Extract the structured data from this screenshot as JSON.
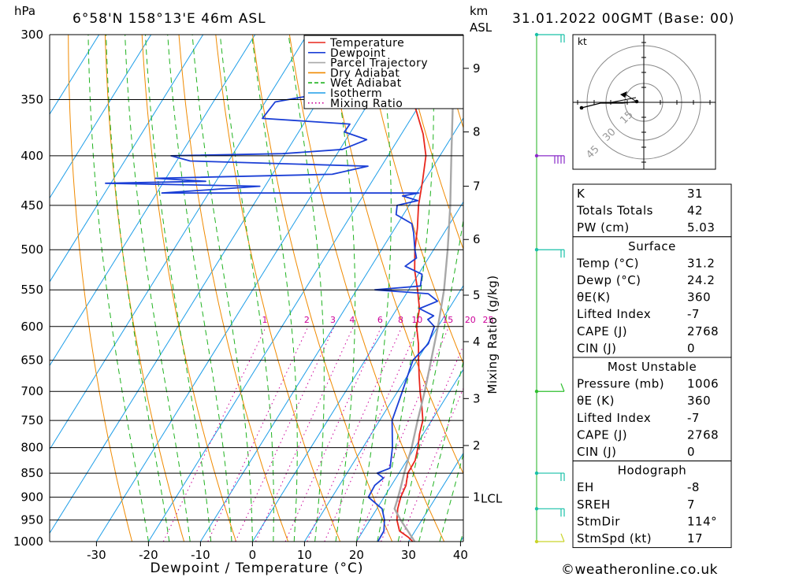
{
  "header": {
    "location": "6°58'N  158°13'E  46m  ASL",
    "datetime": "31.01.2022  00GMT  (Base: 00)",
    "hpa_unit": "hPa",
    "km_unit": "km",
    "asl_unit": "ASL"
  },
  "chart_data": {
    "type": "skew-t log-p sounding",
    "xlabel": "Dewpoint / Temperature (°C)",
    "ylabel": "hPa",
    "right_axis_label": "Mixing Ratio (g/kg)",
    "x_ticks": [
      -30,
      -20,
      -10,
      0,
      10,
      20,
      30,
      40
    ],
    "pressure_levels": [
      300,
      350,
      400,
      450,
      500,
      550,
      600,
      650,
      700,
      750,
      800,
      850,
      900,
      950,
      1000
    ],
    "km_ticks": [
      {
        "label": "9",
        "p": 325
      },
      {
        "label": "8",
        "p": 378
      },
      {
        "label": "7",
        "p": 430
      },
      {
        "label": "6",
        "p": 488
      },
      {
        "label": "5",
        "p": 557
      },
      {
        "label": "4",
        "p": 622
      },
      {
        "label": "3",
        "p": 712
      },
      {
        "label": "2",
        "p": 796
      },
      {
        "label": "1",
        "p": 900
      }
    ],
    "lcl": {
      "label": "LCL",
      "p": 903
    },
    "mixing_ratio_labels": [
      "1",
      "2",
      "3",
      "4",
      "6",
      "8",
      "10",
      "15",
      "20",
      "25"
    ],
    "mixing_ratio_values": [
      1,
      2,
      3,
      4,
      6,
      8,
      10,
      15,
      20,
      25
    ],
    "legend": [
      {
        "name": "Temperature",
        "color": "#e8261c",
        "style": "solid"
      },
      {
        "name": "Dewpoint",
        "color": "#1b3fd6",
        "style": "solid"
      },
      {
        "name": "Parcel Trajectory",
        "color": "#a8a8a8",
        "style": "solid"
      },
      {
        "name": "Dry Adiabat",
        "color": "#f08a00",
        "style": "solid"
      },
      {
        "name": "Wet Adiabat",
        "color": "#1fb21f",
        "style": "dashed"
      },
      {
        "name": "Isotherm",
        "color": "#1e9ee8",
        "style": "solid"
      },
      {
        "name": "Mixing Ratio",
        "color": "#cc0099",
        "style": "dotted"
      }
    ],
    "series": [
      {
        "name": "Temperature",
        "points": [
          {
            "p": 1000,
            "t": 30.8
          },
          {
            "p": 990,
            "t": 29.5
          },
          {
            "p": 975,
            "t": 27.0
          },
          {
            "p": 950,
            "t": 25.2
          },
          {
            "p": 925,
            "t": 24.0
          },
          {
            "p": 900,
            "t": 23.2
          },
          {
            "p": 875,
            "t": 22.8
          },
          {
            "p": 850,
            "t": 21.7
          },
          {
            "p": 825,
            "t": 21.6
          },
          {
            "p": 800,
            "t": 20.6
          },
          {
            "p": 775,
            "t": 19.3
          },
          {
            "p": 750,
            "t": 18.3
          },
          {
            "p": 725,
            "t": 16.4
          },
          {
            "p": 700,
            "t": 14.3
          },
          {
            "p": 675,
            "t": 12.3
          },
          {
            "p": 650,
            "t": 10.3
          },
          {
            "p": 625,
            "t": 8.3
          },
          {
            "p": 600,
            "t": 5.9
          },
          {
            "p": 575,
            "t": 4.3
          },
          {
            "p": 550,
            "t": 1.7
          },
          {
            "p": 525,
            "t": -1.2
          },
          {
            "p": 500,
            "t": -3.6
          },
          {
            "p": 475,
            "t": -5.7
          },
          {
            "p": 450,
            "t": -8.2
          },
          {
            "p": 425,
            "t": -10.3
          },
          {
            "p": 400,
            "t": -12.7
          },
          {
            "p": 380,
            "t": -15.8
          },
          {
            "p": 360,
            "t": -19.8
          },
          {
            "p": 340,
            "t": -24.3
          },
          {
            "p": 320,
            "t": -28.8
          },
          {
            "p": 305,
            "t": -32.3
          },
          {
            "p": 300,
            "t": -33.5
          }
        ]
      },
      {
        "name": "Dewpoint",
        "points": [
          {
            "p": 1000,
            "t": 24.1
          },
          {
            "p": 975,
            "t": 24.0
          },
          {
            "p": 950,
            "t": 22.8
          },
          {
            "p": 925,
            "t": 21.0
          },
          {
            "p": 900,
            "t": 17.0
          },
          {
            "p": 875,
            "t": 16.8
          },
          {
            "p": 860,
            "t": 17.6
          },
          {
            "p": 850,
            "t": 15.8
          },
          {
            "p": 840,
            "t": 17.7
          },
          {
            "p": 800,
            "t": 15.7
          },
          {
            "p": 750,
            "t": 12.4
          },
          {
            "p": 700,
            "t": 10.9
          },
          {
            "p": 650,
            "t": 9.2
          },
          {
            "p": 625,
            "t": 10.2
          },
          {
            "p": 600,
            "t": 9.3
          },
          {
            "p": 590,
            "t": 7.2
          },
          {
            "p": 585,
            "t": 7.9
          },
          {
            "p": 575,
            "t": 4.3
          },
          {
            "p": 565,
            "t": 6.9
          },
          {
            "p": 555,
            "t": 4.2
          },
          {
            "p": 550,
            "t": -6.5
          },
          {
            "p": 545,
            "t": 1.8
          },
          {
            "p": 530,
            "t": 0.7
          },
          {
            "p": 520,
            "t": -3.5
          },
          {
            "p": 510,
            "t": -2.3
          },
          {
            "p": 500,
            "t": -3.6
          },
          {
            "p": 480,
            "t": -5.9
          },
          {
            "p": 470,
            "t": -7.3
          },
          {
            "p": 460,
            "t": -11.4
          },
          {
            "p": 450,
            "t": -12.3
          },
          {
            "p": 445,
            "t": -8.9
          },
          {
            "p": 440,
            "t": -12.4
          },
          {
            "p": 437,
            "t": -9.6
          },
          {
            "p": 437,
            "t": -59.0
          },
          {
            "p": 430,
            "t": -41.0
          },
          {
            "p": 427,
            "t": -71.0
          },
          {
            "p": 425,
            "t": -52.0
          },
          {
            "p": 422,
            "t": -62.0
          },
          {
            "p": 418,
            "t": -28.5
          },
          {
            "p": 410,
            "t": -22.6
          },
          {
            "p": 405,
            "t": -57.4
          },
          {
            "p": 400,
            "t": -61.7
          },
          {
            "p": 398,
            "t": -40.5
          },
          {
            "p": 394,
            "t": -29.5
          },
          {
            "p": 385,
            "t": -26.0
          },
          {
            "p": 378,
            "t": -31.2
          },
          {
            "p": 371,
            "t": -31.1
          },
          {
            "p": 366,
            "t": -48.6
          },
          {
            "p": 352,
            "t": -48.1
          },
          {
            "p": 343,
            "t": -37.8
          },
          {
            "p": 338,
            "t": -31.0
          },
          {
            "p": 327,
            "t": -32.5
          },
          {
            "p": 322,
            "t": -30.2
          },
          {
            "p": 315,
            "t": -35.9
          },
          {
            "p": 308,
            "t": -37.0
          },
          {
            "p": 302,
            "t": -37.7
          },
          {
            "p": 300,
            "t": -39.0
          }
        ]
      },
      {
        "name": "Parcel Trajectory",
        "points": [
          {
            "p": 1000,
            "t": 31.2
          },
          {
            "p": 975,
            "t": 28.6
          },
          {
            "p": 950,
            "t": 25.9
          },
          {
            "p": 925,
            "t": 23.4
          },
          {
            "p": 903,
            "t": 22.8
          },
          {
            "p": 875,
            "t": 21.9
          },
          {
            "p": 850,
            "t": 21.0
          },
          {
            "p": 800,
            "t": 19.4
          },
          {
            "p": 750,
            "t": 17.3
          },
          {
            "p": 700,
            "t": 15.2
          },
          {
            "p": 650,
            "t": 12.7
          },
          {
            "p": 600,
            "t": 10.0
          },
          {
            "p": 550,
            "t": 6.8
          },
          {
            "p": 500,
            "t": 2.7
          },
          {
            "p": 450,
            "t": -2.1
          },
          {
            "p": 400,
            "t": -7.8
          },
          {
            "p": 350,
            "t": -14.2
          },
          {
            "p": 300,
            "t": -21.8
          }
        ]
      }
    ],
    "wind_barb_colors": [
      {
        "p": 300,
        "color": "#19c0a8"
      },
      {
        "p": 400,
        "color": "#8a2cc9"
      },
      {
        "p": 500,
        "color": "#19c0a8"
      },
      {
        "p": 700,
        "color": "#2fbf2f"
      },
      {
        "p": 850,
        "color": "#19c0a8"
      },
      {
        "p": 925,
        "color": "#19c0a8"
      },
      {
        "p": 1000,
        "color": "#c9d42a"
      }
    ]
  },
  "hodograph": {
    "unit": "kt",
    "ring_labels": [
      "15",
      "30",
      "45"
    ]
  },
  "indices": {
    "rows": [
      {
        "label": "K",
        "value": "31"
      },
      {
        "label": "Totals Totals",
        "value": "42"
      },
      {
        "label": "PW (cm)",
        "value": "5.03"
      }
    ],
    "surface": {
      "title": "Surface",
      "rows": [
        {
          "label": "Temp (°C)",
          "value": "31.2"
        },
        {
          "label": "Dewp (°C)",
          "value": "24.2"
        },
        {
          "label": "θE(K)",
          "value": "360"
        },
        {
          "label": "Lifted Index",
          "value": "-7"
        },
        {
          "label": "CAPE (J)",
          "value": "2768"
        },
        {
          "label": "CIN (J)",
          "value": "0"
        }
      ]
    },
    "most_unstable": {
      "title": "Most Unstable",
      "rows": [
        {
          "label": "Pressure (mb)",
          "value": "1006"
        },
        {
          "label": "θE (K)",
          "value": "360"
        },
        {
          "label": "Lifted Index",
          "value": "-7"
        },
        {
          "label": "CAPE (J)",
          "value": "2768"
        },
        {
          "label": "CIN (J)",
          "value": "0"
        }
      ]
    },
    "hodograph_box": {
      "title": "Hodograph",
      "rows": [
        {
          "label": "EH",
          "value": "-8"
        },
        {
          "label": "SREH",
          "value": "7"
        },
        {
          "label": "StmDir",
          "value": "114°"
        },
        {
          "label": "StmSpd (kt)",
          "value": "17"
        }
      ]
    }
  },
  "footer": {
    "credit": "©weatheronline.co.uk"
  }
}
